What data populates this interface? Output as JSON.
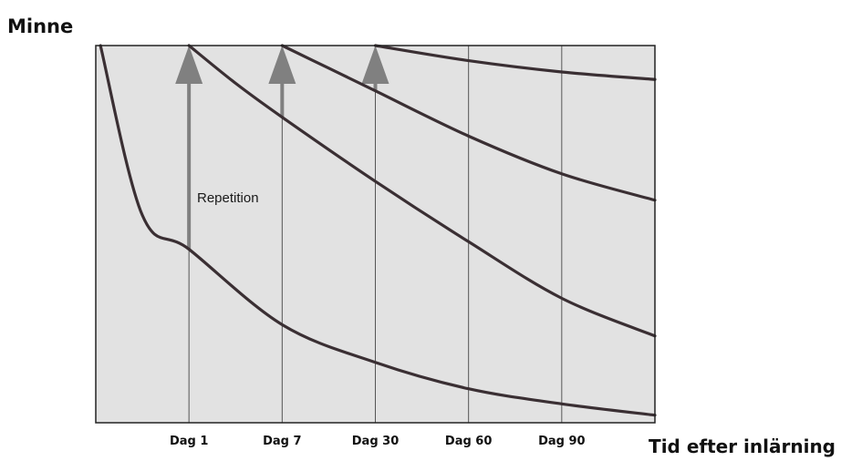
{
  "chart_data": {
    "type": "line",
    "title": "",
    "ylabel": "Minne",
    "xlabel": "Tid efter inlärning",
    "x_ticks": [
      {
        "label": "Dag 1",
        "value": 1
      },
      {
        "label": "Dag 7",
        "value": 2
      },
      {
        "label": "Dag 30",
        "value": 3
      },
      {
        "label": "Dag 60",
        "value": 4
      },
      {
        "label": "Dag 90",
        "value": 5
      }
    ],
    "xlim": [
      0,
      6
    ],
    "ylim": [
      0,
      1
    ],
    "annotation": "Repetition",
    "series": [
      {
        "x": [
          0.05,
          0.5,
          1,
          2,
          3,
          4,
          5,
          6
        ],
        "y": [
          1.0,
          0.55,
          0.46,
          0.26,
          0.16,
          0.09,
          0.05,
          0.02
        ]
      },
      {
        "x": [
          1,
          1.5,
          2,
          3,
          4,
          5,
          6
        ],
        "y": [
          1.0,
          0.9,
          0.81,
          0.64,
          0.48,
          0.33,
          0.23
        ]
      },
      {
        "x": [
          2,
          2.5,
          3,
          4,
          5,
          6
        ],
        "y": [
          1.0,
          0.94,
          0.88,
          0.76,
          0.66,
          0.59
        ]
      },
      {
        "x": [
          3,
          4,
          5,
          6
        ],
        "y": [
          1.0,
          0.96,
          0.93,
          0.91
        ]
      }
    ],
    "repetition_arrows": [
      {
        "x": 1,
        "y_from": 0.46,
        "y_to": 1.0
      },
      {
        "x": 2,
        "y_from": 0.81,
        "y_to": 1.0
      },
      {
        "x": 3,
        "y_from": 0.88,
        "y_to": 1.0
      }
    ],
    "colors": {
      "plot_background": "#e2e2e2",
      "curve": "#3a2f33",
      "arrow": "#808080",
      "gridline": "#555555",
      "frame": "#222222"
    },
    "grid": true
  }
}
